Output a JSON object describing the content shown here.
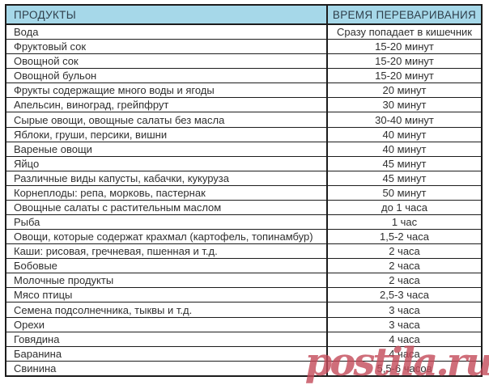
{
  "table": {
    "columns": [
      "ПРОДУКТЫ",
      "ВРЕМЯ ПЕРЕВАРИВАНИЯ"
    ],
    "rows": [
      {
        "product": "Вода",
        "time": "Сразу попадает в кишечник"
      },
      {
        "product": "Фруктовый сок",
        "time": "15-20 минут"
      },
      {
        "product": "Овощной сок",
        "time": "15-20 минут"
      },
      {
        "product": "Овощной бульон",
        "time": "15-20 минут"
      },
      {
        "product": "Фрукты содержащие много воды и ягоды",
        "time": "20 минут"
      },
      {
        "product": "Апельсин, виноград, грейпфрут",
        "time": "30 минут"
      },
      {
        "product": "Сырые овощи, овощные салаты без масла",
        "time": "30-40 минут"
      },
      {
        "product": "Яблоки, груши, персики, вишни",
        "time": "40 минут"
      },
      {
        "product": "Вареные овощи",
        "time": "40 минут"
      },
      {
        "product": "Яйцо",
        "time": "45 минут"
      },
      {
        "product": "Различные виды капусты, кабачки, кукуруза",
        "time": "45 минут"
      },
      {
        "product": "Корнеплоды: репа, морковь, пастернак",
        "time": "50 минут"
      },
      {
        "product": "Овощные салаты с растительным маслом",
        "time": "до 1 часа"
      },
      {
        "product": "Рыба",
        "time": "1 час"
      },
      {
        "product": "Овощи, которые содержат крахмал (картофель, топинамбур)",
        "time": "1,5-2 часа"
      },
      {
        "product": "Каши: рисовая, гречневая, пшенная и т.д.",
        "time": "2 часа"
      },
      {
        "product": "Бобовые",
        "time": "2 часа"
      },
      {
        "product": "Молочные продукты",
        "time": "2 часа"
      },
      {
        "product": "Мясо птицы",
        "time": "2,5-3 часа"
      },
      {
        "product": "Семена подсолнечника, тыквы и т.д.",
        "time": "3 часа"
      },
      {
        "product": "Орехи",
        "time": "3 часа"
      },
      {
        "product": "Говядина",
        "time": "4 часа"
      },
      {
        "product": "Баранина",
        "time": "4 часа"
      },
      {
        "product": "Свинина",
        "time": "5,5-6 часов"
      }
    ]
  },
  "watermark": {
    "text": "postila.ru",
    "color": "#c44a5a"
  },
  "colors": {
    "header_bg": "#a6d8e9",
    "header_text": "#2e3e4a",
    "body_text": "#2f2f2f",
    "border": "#1c1c1c"
  },
  "chart_data": {
    "type": "table",
    "title": "",
    "columns": [
      "ПРОДУКТЫ",
      "ВРЕМЯ ПЕРЕВАРИВАНИЯ"
    ],
    "rows": [
      [
        "Вода",
        "Сразу попадает в кишечник"
      ],
      [
        "Фруктовый сок",
        "15-20 минут"
      ],
      [
        "Овощной сок",
        "15-20 минут"
      ],
      [
        "Овощной бульон",
        "15-20 минут"
      ],
      [
        "Фрукты содержащие много воды и ягоды",
        "20 минут"
      ],
      [
        "Апельсин, виноград, грейпфрут",
        "30 минут"
      ],
      [
        "Сырые овощи, овощные салаты без масла",
        "30-40 минут"
      ],
      [
        "Яблоки, груши, персики, вишни",
        "40 минут"
      ],
      [
        "Вареные овощи",
        "40 минут"
      ],
      [
        "Яйцо",
        "45 минут"
      ],
      [
        "Различные виды капусты, кабачки, кукуруза",
        "45 минут"
      ],
      [
        "Корнеплоды: репа, морковь, пастернак",
        "50 минут"
      ],
      [
        "Овощные салаты с растительным маслом",
        "до 1 часа"
      ],
      [
        "Рыба",
        "1 час"
      ],
      [
        "Овощи, которые содержат крахмал (картофель, топинамбур)",
        "1,5-2 часа"
      ],
      [
        "Каши: рисовая, гречневая, пшенная и т.д.",
        "2 часа"
      ],
      [
        "Бобовые",
        "2 часа"
      ],
      [
        "Молочные продукты",
        "2 часа"
      ],
      [
        "Мясо птицы",
        "2,5-3 часа"
      ],
      [
        "Семена подсолнечника, тыквы и т.д.",
        "3 часа"
      ],
      [
        "Орехи",
        "3 часа"
      ],
      [
        "Говядина",
        "4 часа"
      ],
      [
        "Баранина",
        "4 часа"
      ],
      [
        "Свинина",
        "5,5-6 часов"
      ]
    ]
  }
}
